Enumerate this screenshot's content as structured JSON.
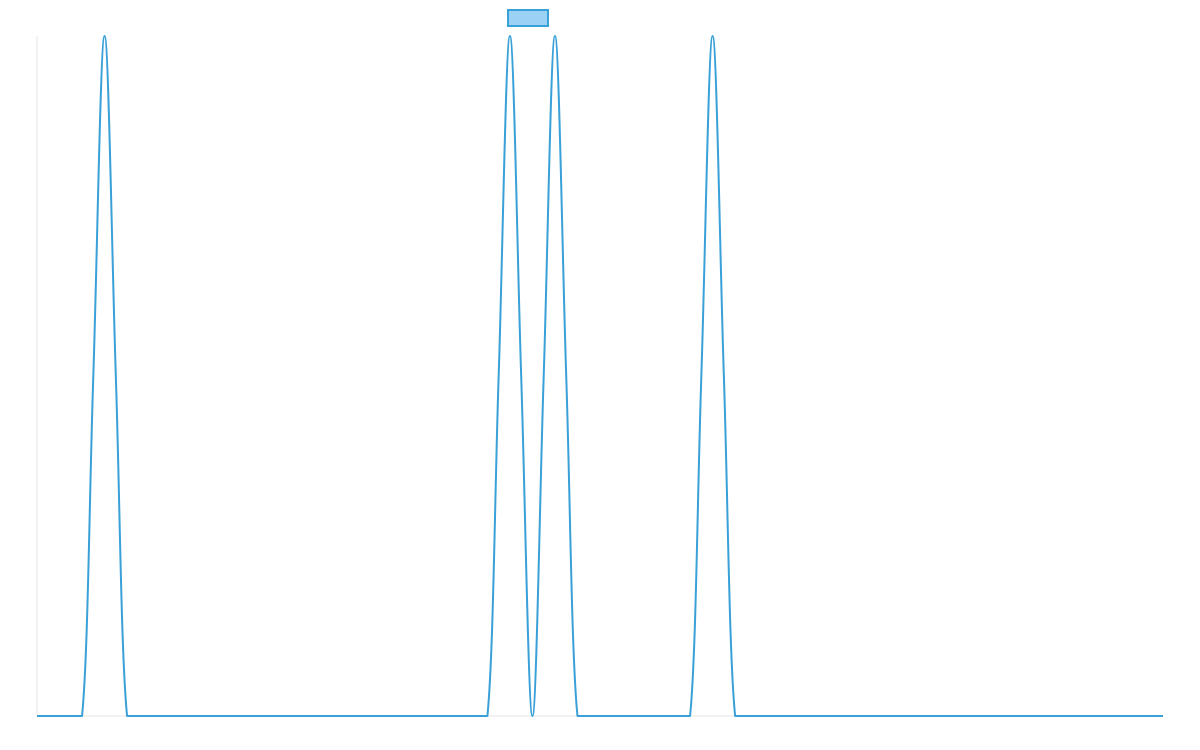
{
  "chart_data": {
    "type": "line",
    "title": "",
    "xlabel": "",
    "ylabel": "",
    "grid": false,
    "legend": "top-center",
    "xlim": [
      0,
      50
    ],
    "ylim": [
      0,
      1
    ],
    "series": [
      {
        "color": "#3aa0d8",
        "fill": "#9bd1f5",
        "points": [
          [
            0,
            0
          ],
          [
            1,
            0
          ],
          [
            2,
            0
          ],
          [
            2.5,
            0.5
          ],
          [
            3,
            1
          ],
          [
            3.5,
            0.5
          ],
          [
            4,
            0
          ],
          [
            5,
            0
          ],
          [
            6,
            0
          ],
          [
            7,
            0
          ],
          [
            8,
            0
          ],
          [
            9,
            0
          ],
          [
            10,
            0
          ],
          [
            11,
            0
          ],
          [
            12,
            0
          ],
          [
            13,
            0
          ],
          [
            14,
            0
          ],
          [
            15,
            0
          ],
          [
            16,
            0
          ],
          [
            17,
            0
          ],
          [
            18,
            0
          ],
          [
            19,
            0
          ],
          [
            20,
            0
          ],
          [
            20.5,
            0.5
          ],
          [
            21,
            1
          ],
          [
            21.5,
            0.5
          ],
          [
            22,
            0
          ],
          [
            22.5,
            0.5
          ],
          [
            23,
            1
          ],
          [
            23.5,
            0.5
          ],
          [
            24,
            0
          ],
          [
            25,
            0
          ],
          [
            26,
            0
          ],
          [
            27,
            0
          ],
          [
            28,
            0
          ],
          [
            29,
            0
          ],
          [
            29.5,
            0.5
          ],
          [
            30,
            1
          ],
          [
            30.5,
            0.5
          ],
          [
            31,
            0
          ],
          [
            32,
            0
          ],
          [
            33,
            0
          ],
          [
            34,
            0
          ],
          [
            35,
            0
          ],
          [
            36,
            0
          ],
          [
            37,
            0
          ],
          [
            38,
            0
          ],
          [
            39,
            0
          ],
          [
            40,
            0
          ],
          [
            41,
            0
          ],
          [
            42,
            0
          ],
          [
            43,
            0
          ],
          [
            44,
            0
          ],
          [
            45,
            0
          ],
          [
            46,
            0
          ],
          [
            47,
            0
          ],
          [
            48,
            0
          ],
          [
            49,
            0
          ],
          [
            50,
            0
          ]
        ]
      }
    ]
  }
}
